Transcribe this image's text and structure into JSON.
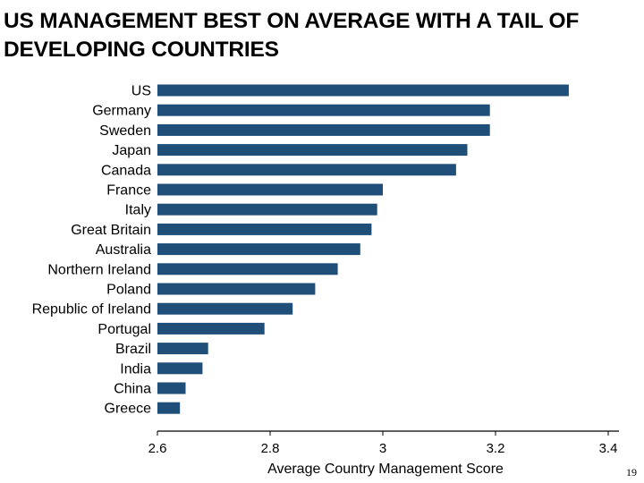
{
  "slide": {
    "title": "US MANAGEMENT BEST ON AVERAGE WITH A TAIL OF DEVELOPING COUNTRIES",
    "page_number": "19"
  },
  "colors": {
    "bar": "#1f4e79",
    "axis": "#000000"
  },
  "chart_data": {
    "type": "bar",
    "orientation": "horizontal",
    "categories": [
      "US",
      "Germany",
      "Sweden",
      "Japan",
      "Canada",
      "France",
      "Italy",
      "Great Britain",
      "Australia",
      "Northern Ireland",
      "Poland",
      "Republic of Ireland",
      "Portugal",
      "Brazil",
      "India",
      "China",
      "Greece"
    ],
    "values": [
      3.33,
      3.19,
      3.19,
      3.15,
      3.13,
      3.0,
      2.99,
      2.98,
      2.96,
      2.92,
      2.88,
      2.84,
      2.79,
      2.69,
      2.68,
      2.65,
      2.64
    ],
    "xlim": [
      2.6,
      3.4
    ],
    "xticks": [
      2.6,
      2.8,
      3.0,
      3.2,
      3.4
    ],
    "xtick_labels": [
      "2.6",
      "2.8",
      "3",
      "3.2",
      "3.4"
    ],
    "xlabel": "Average Country Management Score",
    "title": "",
    "grid": false,
    "legend": "none"
  }
}
